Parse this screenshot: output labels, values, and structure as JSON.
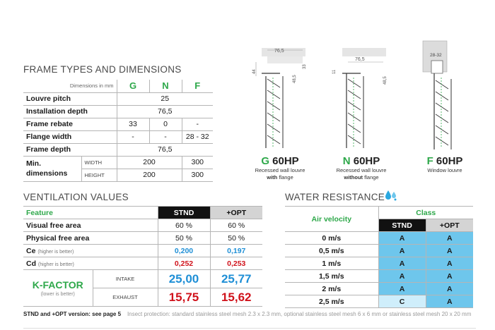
{
  "frame": {
    "title": "FRAME TYPES AND DIMENSIONS",
    "dim_label": "Dimensions in mm",
    "letters": [
      "G",
      "N",
      "F"
    ],
    "rows": {
      "louvre_pitch": {
        "label": "Louvre pitch",
        "value": "25"
      },
      "installation_depth": {
        "label": "Installation depth",
        "value": "76,5"
      },
      "frame_rebate": {
        "label": "Frame rebate",
        "g": "33",
        "n": "0",
        "f": "-"
      },
      "flange_width": {
        "label": "Flange width",
        "g": "-",
        "n": "-",
        "f": "28 - 32"
      },
      "frame_depth": {
        "label": "Frame depth",
        "value": "76,5"
      },
      "min_dim": {
        "label": "Min. dimensions",
        "width_label": "WIDTH",
        "height_label": "HEIGHT",
        "w_gn": "200",
        "w_f": "300",
        "h_gn": "200",
        "h_f": "300"
      }
    }
  },
  "diagrams": [
    {
      "prefix": "G",
      "model": " 60HP",
      "line1": "Recessed wall louvre",
      "line2_bold": "with",
      "line2_rest": " flange",
      "dims": [
        "76,5",
        "44",
        "33",
        "48,5"
      ]
    },
    {
      "prefix": "N",
      "model": " 60HP",
      "line1": "Recessed wall louvre",
      "line2_bold": "without",
      "line2_rest": " flange",
      "dims": [
        "76,5",
        "11",
        "48,5"
      ]
    },
    {
      "prefix": "F",
      "model": " 60HP",
      "line1": "Window louvre",
      "line2_bold": "",
      "line2_rest": "",
      "dims": [
        "28-32"
      ]
    }
  ],
  "ventilation": {
    "title": "VENTILATION VALUES",
    "feature_label": "Feature",
    "stnd": "STND",
    "opt": "+OPT",
    "visual": {
      "label": "Visual free area",
      "stnd": "60 %",
      "opt": "60 %"
    },
    "physical": {
      "label": "Physical free area",
      "stnd": "50 %",
      "opt": "50 %"
    },
    "ce": {
      "label": "Ce",
      "note": "(higher is better)",
      "stnd": "0,200",
      "opt": "0,197"
    },
    "cd": {
      "label": "Cd",
      "note": "(higher is better)",
      "stnd": "0,252",
      "opt": "0,253"
    },
    "kfactor": {
      "label": "K-FACTOR",
      "note": "(lower is better)",
      "intake_label": "INTAKE",
      "exhaust_label": "EXHAUST",
      "intake_stnd": "25,00",
      "intake_opt": "25,77",
      "exhaust_stnd": "15,75",
      "exhaust_opt": "15,62"
    }
  },
  "water": {
    "title": "WATER RESISTANCE",
    "air_velocity": "Air velocity",
    "class": "Class",
    "stnd": "STND",
    "opt": "+OPT",
    "rows": [
      {
        "v": "0 m/s",
        "s": "A",
        "o": "A"
      },
      {
        "v": "0,5 m/s",
        "s": "A",
        "o": "A"
      },
      {
        "v": "1 m/s",
        "s": "A",
        "o": "A"
      },
      {
        "v": "1,5 m/s",
        "s": "A",
        "o": "A"
      },
      {
        "v": "2 m/s",
        "s": "A",
        "o": "A"
      },
      {
        "v": "2,5 m/s",
        "s": "C",
        "o": "A"
      }
    ]
  },
  "footnote": {
    "bold": "STND and +OPT version: see page 5",
    "light": "Insect protection: standard stainless steel mesh 2.3 x 2.3 mm, optional stainless steel mesh 6 x 6 mm or stainless steel mesh 20 x 20 mm"
  },
  "colors": {
    "green": "#2ea84a",
    "blue": "#1f8fd6",
    "red": "#d0121b",
    "class_blue": "#6ec6ec"
  }
}
